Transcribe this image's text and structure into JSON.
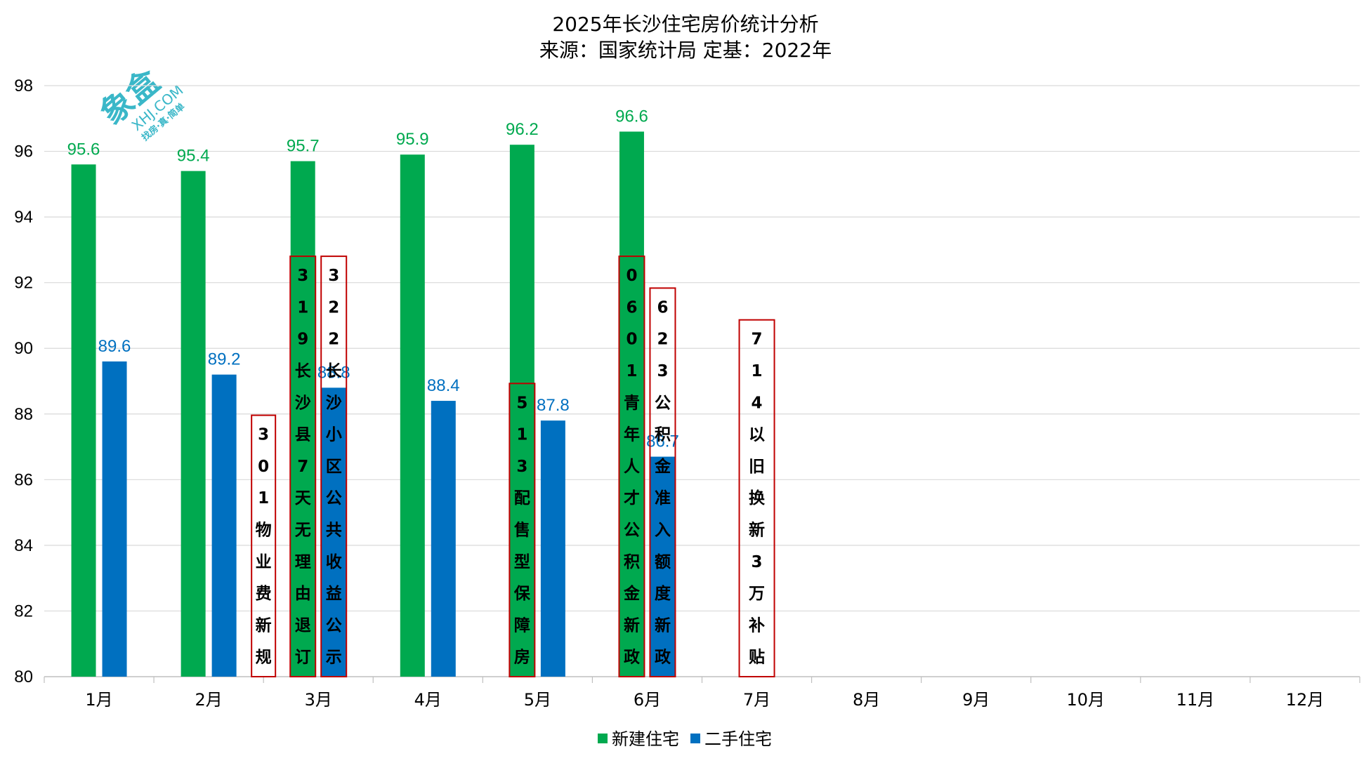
{
  "chart_data": {
    "type": "bar",
    "title": "2025年长沙住宅房价统计分析",
    "subtitle": "来源：国家统计局 定基：2022年",
    "xlabel": "",
    "ylabel": "",
    "ylim": [
      80,
      98
    ],
    "yticks": [
      "80",
      "82",
      "84",
      "86",
      "88",
      "90",
      "92",
      "94",
      "96",
      "98"
    ],
    "grid": true,
    "legend_position": "bottom",
    "categories": [
      "1月",
      "2月",
      "3月",
      "4月",
      "5月",
      "6月",
      "7月",
      "8月",
      "9月",
      "10月",
      "11月",
      "12月"
    ],
    "series": [
      {
        "name": "新建住宅",
        "color": "#00A94F",
        "values": [
          95.6,
          95.4,
          95.7,
          95.9,
          96.2,
          96.6,
          null,
          null,
          null,
          null,
          null,
          null
        ],
        "labels": [
          "95.6",
          "95.4",
          "95.7",
          "95.9",
          "96.2",
          "96.6",
          "",
          "",
          "",
          "",
          "",
          ""
        ]
      },
      {
        "name": "二手住宅",
        "color": "#0070C0",
        "values": [
          89.6,
          89.2,
          88.8,
          88.4,
          87.8,
          86.7,
          null,
          null,
          null,
          null,
          null,
          null
        ],
        "labels": [
          "89.6",
          "89.2",
          "88.8",
          "88.4",
          "87.8",
          "86.7",
          "",
          "",
          "",
          "",
          "",
          ""
        ]
      }
    ],
    "annotations": [
      {
        "text": "301物业费新规",
        "category": 1,
        "slot": "after"
      },
      {
        "text": "319长沙县7天无理由退订",
        "category": 2,
        "slot": "series0"
      },
      {
        "text": "322长沙小区公共收益公示",
        "category": 2,
        "slot": "series1"
      },
      {
        "text": "513配售型保障房",
        "category": 4,
        "slot": "series0"
      },
      {
        "text": "0601青年人才公积金新政",
        "category": 5,
        "slot": "series0"
      },
      {
        "text": "623公积金准入额度新政",
        "category": 5,
        "slot": "series1"
      },
      {
        "text": "714以旧换新3万补贴",
        "category": 6,
        "slot": "center"
      }
    ],
    "annotation_border_color": "#C00000"
  },
  "watermark": {
    "logo_text": "象盒",
    "domain_text": "XHJ.COM",
    "tagline": "找房·真·简单",
    "color": "#3AB7C8"
  }
}
